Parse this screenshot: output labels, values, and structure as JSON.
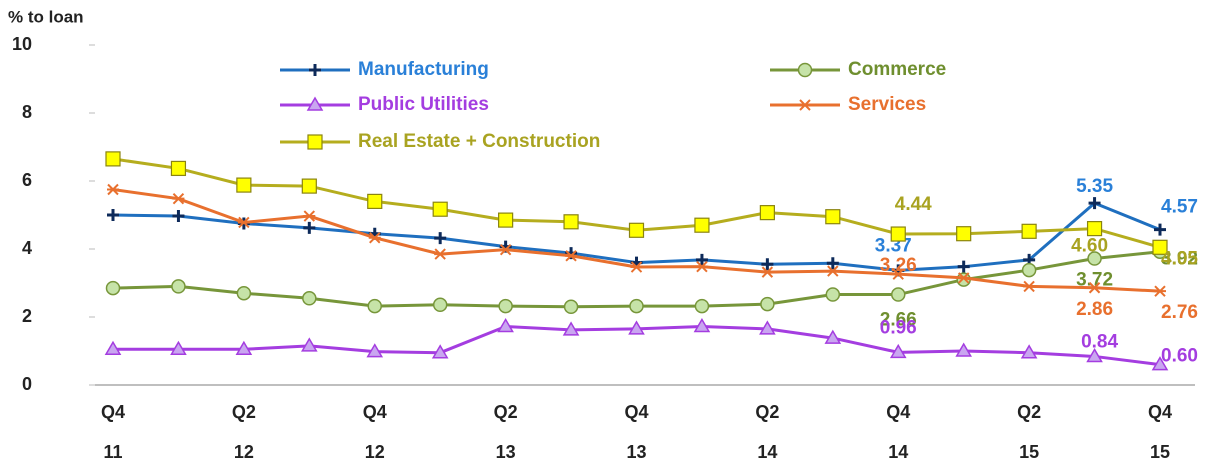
{
  "chart_data": {
    "type": "line",
    "y_axis_label": "% to loan",
    "categories": [
      "Q4",
      null,
      "Q2",
      null,
      "Q4",
      null,
      "Q2",
      null,
      "Q4",
      null,
      "Q2",
      null,
      "Q4",
      null,
      "Q2",
      null,
      "Q4"
    ],
    "category_years": [
      "11",
      null,
      "12",
      null,
      "12",
      null,
      "13",
      null,
      "13",
      null,
      "14",
      null,
      "14",
      null,
      "15",
      null,
      "15"
    ],
    "ylim": [
      0,
      10
    ],
    "yticks": [
      0,
      2,
      4,
      6,
      8,
      10
    ],
    "series": [
      {
        "name": "Manufacturing",
        "color": "#1f6fbf",
        "label_color": "#2a80d8",
        "marker": "plus",
        "values": [
          5.0,
          4.97,
          4.75,
          4.62,
          4.45,
          4.32,
          4.07,
          3.88,
          3.6,
          3.68,
          3.55,
          3.58,
          3.37,
          3.48,
          3.68,
          5.35,
          4.57
        ],
        "value_labels": [
          null,
          null,
          null,
          null,
          null,
          null,
          null,
          null,
          null,
          null,
          null,
          null,
          "3.37",
          null,
          null,
          "5.35",
          "4.57"
        ]
      },
      {
        "name": "Commerce",
        "color": "#77963a",
        "label_color": "#6f8f2f",
        "marker": "circle",
        "marker_fill": "#c6e3a8",
        "values": [
          2.85,
          2.9,
          2.7,
          2.55,
          2.32,
          2.36,
          2.32,
          2.3,
          2.32,
          2.32,
          2.38,
          2.66,
          2.66,
          3.1,
          3.38,
          3.72,
          3.92
        ],
        "value_labels": [
          null,
          null,
          null,
          null,
          null,
          null,
          null,
          null,
          null,
          null,
          null,
          null,
          "2.66",
          null,
          null,
          "3.72",
          "3.92"
        ]
      },
      {
        "name": "Public Utilities",
        "color": "#a43de0",
        "label_color": "#a43de0",
        "marker": "triangle",
        "marker_fill": "#c9a6f0",
        "values": [
          1.05,
          1.05,
          1.05,
          1.15,
          0.98,
          0.95,
          1.72,
          1.62,
          1.65,
          1.72,
          1.65,
          1.38,
          0.96,
          1.0,
          0.95,
          0.84,
          0.6
        ],
        "value_labels": [
          null,
          null,
          null,
          null,
          null,
          null,
          null,
          null,
          null,
          null,
          null,
          null,
          "0.96",
          null,
          null,
          "0.84",
          "0.60"
        ]
      },
      {
        "name": "Services",
        "color": "#e8702e",
        "label_color": "#e8702e",
        "marker": "asterisk",
        "values": [
          5.75,
          5.48,
          4.78,
          4.97,
          4.33,
          3.85,
          3.98,
          3.8,
          3.47,
          3.48,
          3.32,
          3.35,
          3.26,
          3.15,
          2.9,
          2.86,
          2.76
        ],
        "value_labels": [
          null,
          null,
          null,
          null,
          null,
          null,
          null,
          null,
          null,
          null,
          null,
          null,
          "3.26",
          null,
          null,
          "2.86",
          "2.76"
        ]
      },
      {
        "name": "Real Estate + Construction",
        "color": "#b5ad1e",
        "label_color": "#a9a321",
        "marker": "square",
        "marker_fill": "#ffff00",
        "values": [
          6.65,
          6.37,
          5.88,
          5.85,
          5.4,
          5.17,
          4.85,
          4.8,
          4.55,
          4.7,
          5.07,
          4.95,
          4.44,
          4.45,
          4.52,
          4.6,
          4.05
        ],
        "value_labels": [
          null,
          null,
          null,
          null,
          null,
          null,
          null,
          null,
          null,
          null,
          null,
          null,
          "4.44",
          null,
          null,
          "4.60",
          "4.05"
        ]
      }
    ]
  }
}
